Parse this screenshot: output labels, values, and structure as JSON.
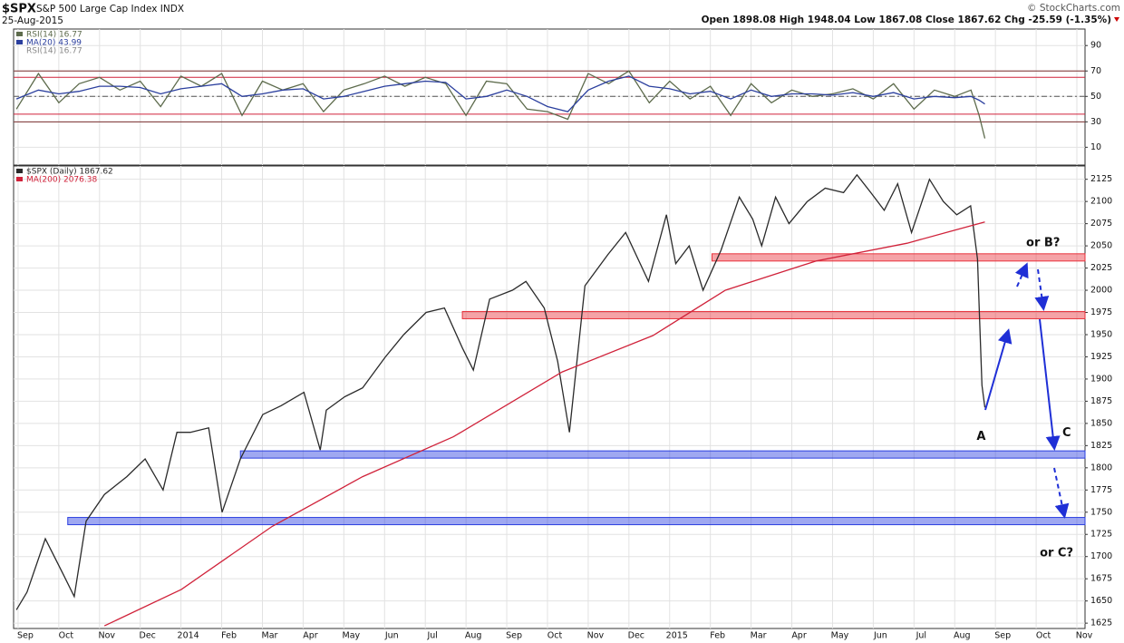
{
  "header": {
    "symbol": "$SPX",
    "name": "S&P 500 Large Cap Index INDX",
    "date": "25-Aug-2015",
    "copyright": "© StockCharts.com",
    "quote": "Open 1898.08 High 1948.04 Low 1867.08 Close 1867.62 Chg -25.59 (-1.35%)"
  },
  "chart_data": [
    {
      "type": "line",
      "panel": "rsi",
      "xlim": [
        -0.11,
        26.2
      ],
      "ylim": [
        -4,
        103
      ],
      "yticks": [
        10,
        30,
        50,
        70,
        90
      ],
      "grid": true,
      "legend_note": "RSI(14) 16.77",
      "levels": [
        {
          "value": 70,
          "color": "#7a2e2e",
          "dash": false
        },
        {
          "value": 65,
          "color": "#d0223a",
          "dash": false
        },
        {
          "value": 50,
          "color": "#555",
          "dash": true
        },
        {
          "value": 36,
          "color": "#d0223a",
          "dash": false
        },
        {
          "value": 30,
          "color": "#7a2e2e",
          "dash": false
        }
      ],
      "series": [
        {
          "name": "RSI(14) 16.77",
          "color": "#5d6b4c",
          "x": [
            -0.04,
            0.5,
            1.0,
            1.5,
            2.0,
            2.5,
            3.0,
            3.5,
            4.0,
            4.5,
            5.0,
            5.5,
            6.0,
            6.5,
            7.0,
            7.5,
            8.0,
            8.5,
            9.0,
            9.5,
            10.0,
            10.5,
            11.0,
            11.5,
            12.0,
            12.5,
            13.0,
            13.5,
            14.0,
            14.5,
            15.0,
            15.5,
            16.0,
            16.5,
            17.0,
            17.5,
            18.0,
            18.5,
            19.0,
            19.5,
            20.0,
            20.5,
            21.0,
            21.5,
            22.0,
            22.5,
            23.0,
            23.4,
            23.6,
            23.74
          ],
          "values": [
            40,
            68,
            45,
            60,
            65,
            55,
            62,
            42,
            66,
            58,
            68,
            35,
            62,
            55,
            60,
            38,
            55,
            60,
            66,
            58,
            65,
            60,
            35,
            62,
            60,
            40,
            38,
            32,
            68,
            60,
            70,
            45,
            62,
            48,
            58,
            35,
            60,
            45,
            55,
            50,
            52,
            56,
            48,
            60,
            40,
            55,
            50,
            55,
            35,
            17
          ]
        },
        {
          "name": "MA(20) 43.99",
          "color": "#2b3f9e",
          "x": [
            -0.04,
            0.5,
            1.0,
            1.5,
            2.0,
            2.5,
            3.0,
            3.5,
            4.0,
            4.5,
            5.0,
            5.5,
            6.0,
            6.5,
            7.0,
            7.5,
            8.0,
            8.5,
            9.0,
            9.5,
            10.0,
            10.5,
            11.0,
            11.5,
            12.0,
            12.5,
            13.0,
            13.5,
            14.0,
            14.5,
            15.0,
            15.5,
            16.0,
            16.5,
            17.0,
            17.5,
            18.0,
            18.5,
            19.0,
            19.5,
            20.0,
            20.5,
            21.0,
            21.5,
            22.0,
            22.5,
            23.0,
            23.4,
            23.6,
            23.74
          ],
          "values": [
            48,
            55,
            52,
            54,
            58,
            58,
            57,
            52,
            56,
            58,
            60,
            50,
            52,
            55,
            56,
            48,
            50,
            54,
            58,
            60,
            62,
            61,
            48,
            50,
            55,
            50,
            42,
            38,
            55,
            62,
            66,
            58,
            56,
            52,
            54,
            48,
            55,
            50,
            52,
            52,
            51,
            53,
            50,
            53,
            48,
            50,
            49,
            50,
            47,
            44
          ]
        }
      ]
    },
    {
      "type": "line",
      "panel": "price",
      "xlim": [
        -0.11,
        26.2
      ],
      "ylim": [
        1619,
        2140
      ],
      "yticks": [
        1625,
        1650,
        1675,
        1700,
        1725,
        1750,
        1775,
        1800,
        1825,
        1850,
        1875,
        1900,
        1925,
        1950,
        1975,
        2000,
        2025,
        2050,
        2075,
        2100,
        2125
      ],
      "grid": true,
      "xticks": [
        {
          "value": 0,
          "label": "Sep"
        },
        {
          "value": 1,
          "label": "Oct"
        },
        {
          "value": 2,
          "label": "Nov"
        },
        {
          "value": 3,
          "label": "Dec"
        },
        {
          "value": 4,
          "label": "2014"
        },
        {
          "value": 5,
          "label": "Feb"
        },
        {
          "value": 6,
          "label": "Mar"
        },
        {
          "value": 7,
          "label": "Apr"
        },
        {
          "value": 8,
          "label": "May"
        },
        {
          "value": 9,
          "label": "Jun"
        },
        {
          "value": 10,
          "label": "Jul"
        },
        {
          "value": 11,
          "label": "Aug"
        },
        {
          "value": 12,
          "label": "Sep"
        },
        {
          "value": 13,
          "label": "Oct"
        },
        {
          "value": 14,
          "label": "Nov"
        },
        {
          "value": 15,
          "label": "Dec"
        },
        {
          "value": 16,
          "label": "2015"
        },
        {
          "value": 17,
          "label": "Feb"
        },
        {
          "value": 18,
          "label": "Mar"
        },
        {
          "value": 19,
          "label": "Apr"
        },
        {
          "value": 20,
          "label": "May"
        },
        {
          "value": 21,
          "label": "Jun"
        },
        {
          "value": 22,
          "label": "Jul"
        },
        {
          "value": 23,
          "label": "Aug"
        },
        {
          "value": 24,
          "label": "Sep"
        },
        {
          "value": 25,
          "label": "Oct"
        },
        {
          "value": 26,
          "label": "Nov"
        }
      ],
      "bands": [
        {
          "value": 2037,
          "from": 17.04,
          "color": "#e8323c"
        },
        {
          "value": 1972,
          "from": 10.91,
          "color": "#e8323c"
        },
        {
          "value": 1815,
          "from": 5.46,
          "color": "#2b3fe0"
        },
        {
          "value": 1740,
          "from": 1.22,
          "color": "#2b3fe0"
        }
      ],
      "annotations": [
        {
          "text": "A",
          "x": 23.65,
          "y": 1835
        },
        {
          "text": "or B?",
          "x": 25.17,
          "y": 2053
        },
        {
          "text": "C",
          "x": 25.75,
          "y": 1839
        },
        {
          "text": "or C?",
          "x": 25.5,
          "y": 1704
        }
      ],
      "series": [
        {
          "name": "$SPX (Daily) 1867.62",
          "color": "#2a2a2a",
          "x": [
            -0.04,
            0.22,
            0.67,
            1.11,
            1.38,
            1.67,
            2.12,
            2.67,
            3.12,
            3.56,
            3.9,
            4.23,
            4.68,
            5.01,
            5.46,
            6.01,
            6.46,
            7.02,
            7.42,
            7.57,
            8.02,
            8.46,
            9.02,
            9.47,
            10.02,
            10.47,
            10.91,
            11.18,
            11.58,
            12.14,
            12.47,
            12.92,
            13.25,
            13.54,
            13.92,
            14.48,
            14.92,
            15.48,
            15.92,
            16.15,
            16.48,
            16.82,
            17.26,
            17.71,
            18.04,
            18.26,
            18.6,
            18.93,
            19.38,
            19.82,
            20.27,
            20.6,
            20.94,
            21.27,
            21.6,
            21.94,
            22.38,
            22.72,
            23.05,
            23.39,
            23.56,
            23.61,
            23.67,
            23.74
          ],
          "values": [
            1640,
            1660,
            1720,
            1680,
            1655,
            1740,
            1770,
            1790,
            1810,
            1775,
            1840,
            1840,
            1845,
            1750,
            1810,
            1860,
            1870,
            1885,
            1820,
            1865,
            1880,
            1890,
            1925,
            1950,
            1975,
            1980,
            1935,
            1910,
            1990,
            2000,
            2010,
            1980,
            1920,
            1840,
            2005,
            2040,
            2065,
            2010,
            2085,
            2030,
            2050,
            2000,
            2045,
            2105,
            2080,
            2050,
            2105,
            2075,
            2100,
            2115,
            2110,
            2130,
            2110,
            2090,
            2120,
            2065,
            2125,
            2100,
            2085,
            2095,
            2035,
            1970,
            1893,
            1868
          ]
        },
        {
          "name": "MA(200) 2076.38",
          "color": "#d0223a",
          "x": [
            2.12,
            4.01,
            6.24,
            8.46,
            10.69,
            13.36,
            15.59,
            17.37,
            19.6,
            21.83,
            23.74
          ],
          "values": [
            1622,
            1663,
            1734,
            1790,
            1835,
            1908,
            1949,
            2000,
            2033,
            2053,
            2077
          ]
        }
      ]
    }
  ]
}
